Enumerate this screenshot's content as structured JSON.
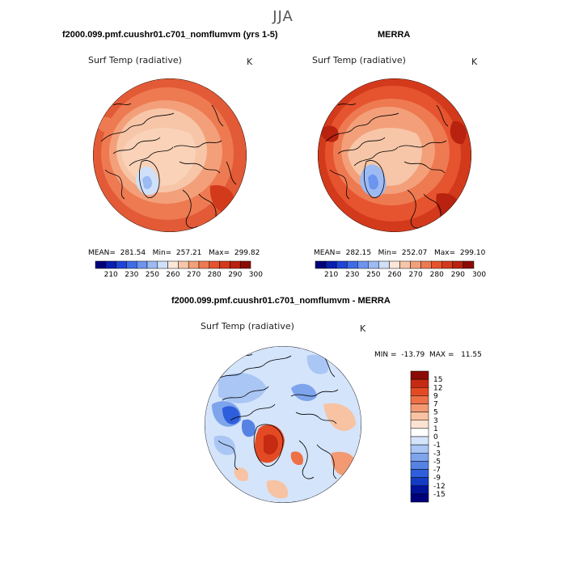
{
  "season": "JJA",
  "panels": [
    {
      "title": "f2000.099.pmf.cuushr01.c701_nomflumvm (yrs 1-5)",
      "variable": "Surf Temp (radiative)",
      "units": "K",
      "stats": {
        "mean": "281.54",
        "min": "257.21",
        "max": "299.82"
      },
      "stats_text": "MEAN=  281.54   Min=  257.21   Max=  299.82"
    },
    {
      "title": "MERRA",
      "variable": "Surf Temp (radiative)",
      "units": "K",
      "stats": {
        "mean": "282.15",
        "min": "252.07",
        "max": "299.10"
      },
      "stats_text": "MEAN=  282.15   Min=  252.07   Max=  299.10"
    },
    {
      "title": "f2000.099.pmf.cuushr01.c701_nomflumvm - MERRA",
      "variable": "Surf Temp (radiative)",
      "units": "K",
      "stats": {
        "min": "-13.79",
        "max": "11.55"
      },
      "stats_text": "MIN =  -13.79  MAX =   11.55"
    }
  ],
  "colorbar_abs": {
    "tick_labels": [
      "210",
      "230",
      "250",
      "260",
      "270",
      "280",
      "290",
      "300"
    ],
    "colors": [
      "#00007a",
      "#0a1fb0",
      "#1f45d6",
      "#3f6de6",
      "#6d94ee",
      "#9dbaf3",
      "#cfe0f8",
      "#fbe6d8",
      "#f7c6a8",
      "#f3a07a",
      "#ee7a52",
      "#e6542f",
      "#d33a1c",
      "#b8220f",
      "#8c0a05"
    ]
  },
  "colorbar_diff": {
    "tick_labels": [
      "15",
      "12",
      "9",
      "7",
      "5",
      "3",
      "1",
      "0",
      "-1",
      "-3",
      "-5",
      "-7",
      "-9",
      "-12",
      "-15"
    ],
    "colors": [
      "#8c0a05",
      "#c52a13",
      "#e34a24",
      "#ee7047",
      "#f39a73",
      "#f7c3a3",
      "#fbe3d3",
      "#ffffff",
      "#d4e4fb",
      "#a9c6f4",
      "#7ea4ec",
      "#5582e3",
      "#2e5edb",
      "#143bc3",
      "#00139a",
      "#00007a"
    ]
  },
  "chart_data": [
    {
      "type": "heatmap",
      "title": "f2000.099.pmf.cuushr01.c701_nomflumvm (yrs 1-5)",
      "variable": "Surf Temp (radiative)",
      "units": "K",
      "projection": "north polar stereographic",
      "mean": 281.54,
      "min": 257.21,
      "max": 299.82,
      "levels": [
        210,
        230,
        250,
        260,
        270,
        280,
        290,
        300
      ]
    },
    {
      "type": "heatmap",
      "title": "MERRA",
      "variable": "Surf Temp (radiative)",
      "units": "K",
      "projection": "north polar stereographic",
      "mean": 282.15,
      "min": 252.07,
      "max": 299.1,
      "levels": [
        210,
        230,
        250,
        260,
        270,
        280,
        290,
        300
      ]
    },
    {
      "type": "heatmap",
      "title": "f2000.099.pmf.cuushr01.c701_nomflumvm - MERRA",
      "variable": "Surf Temp (radiative)",
      "units": "K",
      "projection": "north polar stereographic",
      "min": -13.79,
      "max": 11.55,
      "levels": [
        -15,
        -12,
        -9,
        -7,
        -5,
        -3,
        -1,
        0,
        1,
        3,
        5,
        7,
        9,
        12,
        15
      ]
    }
  ]
}
